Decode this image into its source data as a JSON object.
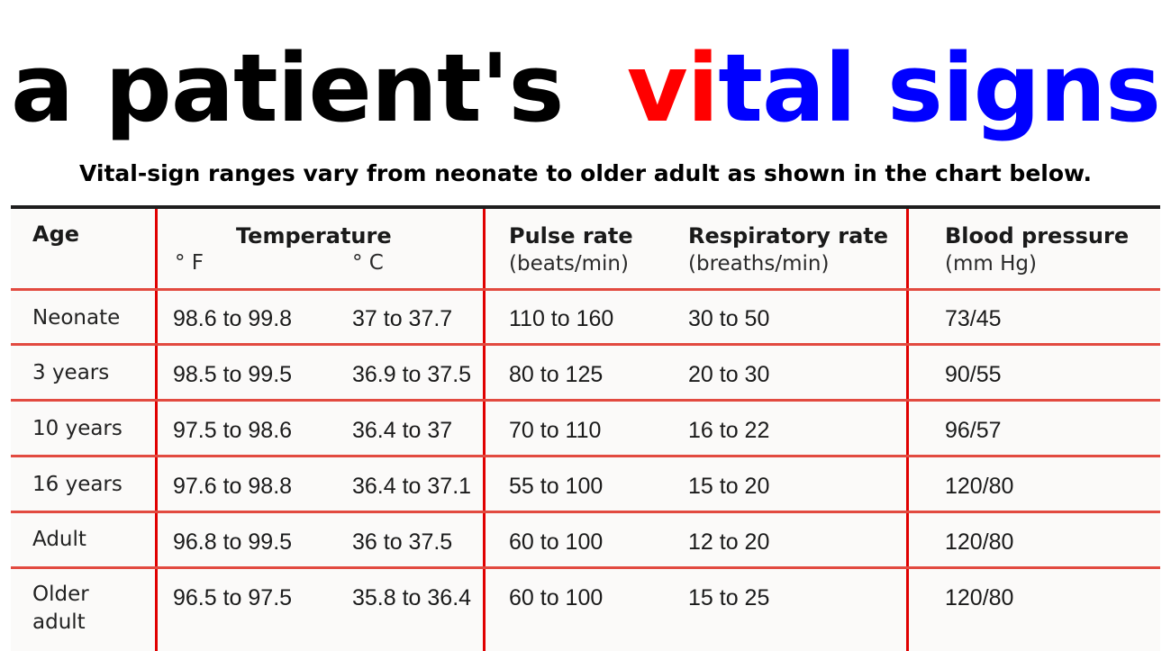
{
  "title": {
    "part1": "a patient's",
    "part2": "vi",
    "part3": "tal signs"
  },
  "subtitle": "Vital-sign ranges vary from neonate to older adult as shown in the chart below.",
  "colors": {
    "title_black": "#000000",
    "title_red": "#ff0000",
    "title_blue": "#0000ff",
    "rule_red": "#e00000"
  },
  "table": {
    "headers": {
      "age": "Age",
      "temperature": "Temperature",
      "temp_f": "° F",
      "temp_c": "° C",
      "pulse": "Pulse rate",
      "pulse_unit": "(beats/min)",
      "resp": "Respiratory rate",
      "resp_unit": "(breaths/min)",
      "bp": "Blood pressure",
      "bp_unit": "(mm Hg)"
    },
    "rows": [
      {
        "age": "Neonate",
        "temp_f": "98.6 to 99.8",
        "temp_c": "37 to 37.7",
        "pulse": "110 to 160",
        "resp": "30 to 50",
        "bp": "73/45"
      },
      {
        "age": "3 years",
        "temp_f": "98.5 to 99.5",
        "temp_c": "36.9 to 37.5",
        "pulse": "80 to 125",
        "resp": "20 to 30",
        "bp": "90/55"
      },
      {
        "age": "10 years",
        "temp_f": "97.5 to 98.6",
        "temp_c": "36.4 to 37",
        "pulse": "70 to 110",
        "resp": "16 to 22",
        "bp": "96/57"
      },
      {
        "age": "16 years",
        "temp_f": "97.6 to 98.8",
        "temp_c": "36.4 to 37.1",
        "pulse": "55 to 100",
        "resp": "15 to 20",
        "bp": "120/80"
      },
      {
        "age": "Adult",
        "temp_f": "96.8 to 99.5",
        "temp_c": "36 to 37.5",
        "pulse": "60 to 100",
        "resp": "12 to 20",
        "bp": "120/80"
      },
      {
        "age": "Older adult",
        "temp_f": "96.5 to 97.5",
        "temp_c": "35.8 to 36.4",
        "pulse": "60 to 100",
        "resp": "15 to 25",
        "bp": "120/80"
      }
    ]
  }
}
